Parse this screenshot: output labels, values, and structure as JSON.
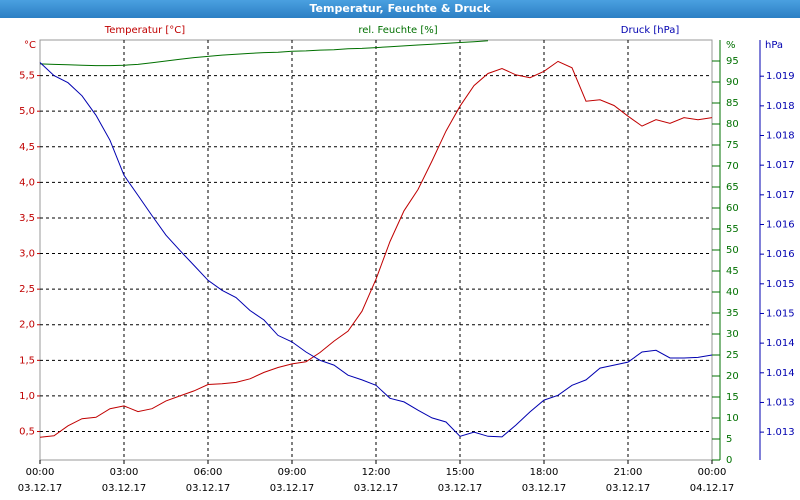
{
  "chart_data": {
    "type": "line",
    "title": "Temperatur, Feuchte & Druck",
    "x": [
      0,
      0.5,
      1,
      1.5,
      2,
      2.5,
      3,
      3.5,
      4,
      4.5,
      5,
      5.5,
      6,
      6.5,
      7,
      7.5,
      8,
      8.5,
      9,
      9.5,
      10,
      10.5,
      11,
      11.5,
      12,
      12.5,
      13,
      13.5,
      14,
      14.5,
      15,
      15.5,
      16,
      16.5,
      17,
      17.5,
      18,
      18.5,
      19,
      19.5,
      20,
      20.5,
      21,
      21.5,
      22,
      22.5,
      23,
      23.5,
      24
    ],
    "xlim": [
      0,
      24
    ],
    "xticks": [
      {
        "value": 0,
        "label": "00:00",
        "date": "03.12.17"
      },
      {
        "value": 3,
        "label": "03:00",
        "date": "03.12.17"
      },
      {
        "value": 6,
        "label": "06:00",
        "date": "03.12.17"
      },
      {
        "value": 9,
        "label": "09:00",
        "date": "03.12.17"
      },
      {
        "value": 12,
        "label": "12:00",
        "date": "03.12.17"
      },
      {
        "value": 15,
        "label": "15:00",
        "date": "03.12.17"
      },
      {
        "value": 18,
        "label": "18:00",
        "date": "03.12.17"
      },
      {
        "value": 21,
        "label": "21:00",
        "date": "03.12.17"
      },
      {
        "value": 24,
        "label": "00:00",
        "date": "04.12.17"
      }
    ],
    "y_unit": "°C",
    "ylim": [
      0.1,
      6.0
    ],
    "yticks": [
      {
        "value": 0.5,
        "label": "0,5"
      },
      {
        "value": 1.0,
        "label": "1,0"
      },
      {
        "value": 1.5,
        "label": "1,5"
      },
      {
        "value": 2.0,
        "label": "2,0"
      },
      {
        "value": 2.5,
        "label": "2,5"
      },
      {
        "value": 3.0,
        "label": "3,0"
      },
      {
        "value": 3.5,
        "label": "3,5"
      },
      {
        "value": 4.0,
        "label": "4,0"
      },
      {
        "value": 4.5,
        "label": "4,5"
      },
      {
        "value": 5.0,
        "label": "5,0"
      },
      {
        "value": 5.5,
        "label": "5,5"
      }
    ],
    "y2_unit": "%",
    "y2lim": [
      0,
      100
    ],
    "y2ticks": [
      0,
      5,
      10,
      15,
      20,
      25,
      30,
      35,
      40,
      45,
      50,
      55,
      60,
      65,
      70,
      75,
      80,
      85,
      90,
      95
    ],
    "y3_unit": "hPa",
    "y3lim": [
      1012.28,
      1019.36
    ],
    "y3ticks": [
      {
        "value": 1012.75,
        "label": "1.013"
      },
      {
        "value": 1013.25,
        "label": "1.013"
      },
      {
        "value": 1013.75,
        "label": "1.014"
      },
      {
        "value": 1014.25,
        "label": "1.014"
      },
      {
        "value": 1014.75,
        "label": "1.015"
      },
      {
        "value": 1015.25,
        "label": "1.015"
      },
      {
        "value": 1015.75,
        "label": "1.016"
      },
      {
        "value": 1016.25,
        "label": "1.016"
      },
      {
        "value": 1016.75,
        "label": "1.017"
      },
      {
        "value": 1017.25,
        "label": "1.017"
      },
      {
        "value": 1017.75,
        "label": "1.018"
      },
      {
        "value": 1018.25,
        "label": "1.018"
      },
      {
        "value": 1018.75,
        "label": "1.019"
      }
    ],
    "grid": true,
    "series": [
      {
        "name": "Temperatur [°C]",
        "color": "#c00000",
        "axis": "y",
        "values": [
          0.42,
          0.44,
          0.58,
          0.68,
          0.7,
          0.82,
          0.86,
          0.78,
          0.82,
          0.93,
          1.0,
          1.07,
          1.16,
          1.17,
          1.19,
          1.24,
          1.33,
          1.4,
          1.45,
          1.48,
          1.61,
          1.77,
          1.91,
          2.19,
          2.64,
          3.17,
          3.6,
          3.9,
          4.3,
          4.72,
          5.07,
          5.36,
          5.53,
          5.6,
          5.51,
          5.47,
          5.56,
          5.7,
          5.61,
          5.14,
          5.16,
          5.08,
          4.93,
          4.79,
          4.88,
          4.83,
          4.91,
          4.88,
          4.91
        ]
      },
      {
        "name": "rel. Feuchte [%]",
        "color": "#007000",
        "axis": "y2",
        "values": [
          94.3,
          94.2,
          94.1,
          94.0,
          93.9,
          93.9,
          94.0,
          94.2,
          94.6,
          95.0,
          95.4,
          95.8,
          96.1,
          96.4,
          96.6,
          96.8,
          97.0,
          97.1,
          97.3,
          97.4,
          97.6,
          97.7,
          97.9,
          98.0,
          98.2,
          98.4,
          98.6,
          98.8,
          99.0,
          99.2,
          99.4,
          99.6,
          99.8,
          null,
          null,
          null,
          null,
          null,
          null,
          null,
          null,
          null,
          null,
          null,
          null,
          null,
          null,
          null,
          null
        ]
      },
      {
        "name": "Druck [hPa]",
        "color": "#0000b0",
        "axis": "y3",
        "values": [
          1018.98,
          1018.76,
          1018.64,
          1018.42,
          1018.09,
          1017.67,
          1017.08,
          1016.74,
          1016.4,
          1016.07,
          1015.81,
          1015.56,
          1015.31,
          1015.14,
          1015.02,
          1014.8,
          1014.64,
          1014.38,
          1014.27,
          1014.1,
          1013.96,
          1013.88,
          1013.71,
          1013.63,
          1013.54,
          1013.32,
          1013.26,
          1013.12,
          1012.99,
          1012.92,
          1012.68,
          1012.75,
          1012.68,
          1012.67,
          1012.87,
          1013.09,
          1013.29,
          1013.37,
          1013.54,
          1013.63,
          1013.83,
          1013.88,
          1013.93,
          1014.1,
          1014.13,
          1014.0,
          1014.0,
          1014.01,
          1014.05
        ]
      }
    ]
  }
}
